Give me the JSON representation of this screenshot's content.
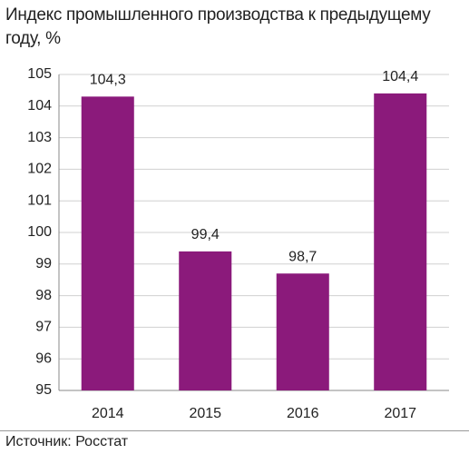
{
  "chart_data": {
    "type": "bar",
    "title": "Индекс промышленного производства к предыдущему году, %",
    "categories": [
      "2014",
      "2015",
      "2016",
      "2017"
    ],
    "values": [
      104.3,
      99.4,
      98.7,
      104.4
    ],
    "value_labels": [
      "104,3",
      "99,4",
      "98,7",
      "104,4"
    ],
    "color": "#8b1a7b",
    "ylim": [
      95,
      105
    ],
    "yticks": [
      95,
      96,
      97,
      98,
      99,
      100,
      101,
      102,
      103,
      104,
      105
    ],
    "grid": true,
    "source": "Источник: Росстат"
  }
}
